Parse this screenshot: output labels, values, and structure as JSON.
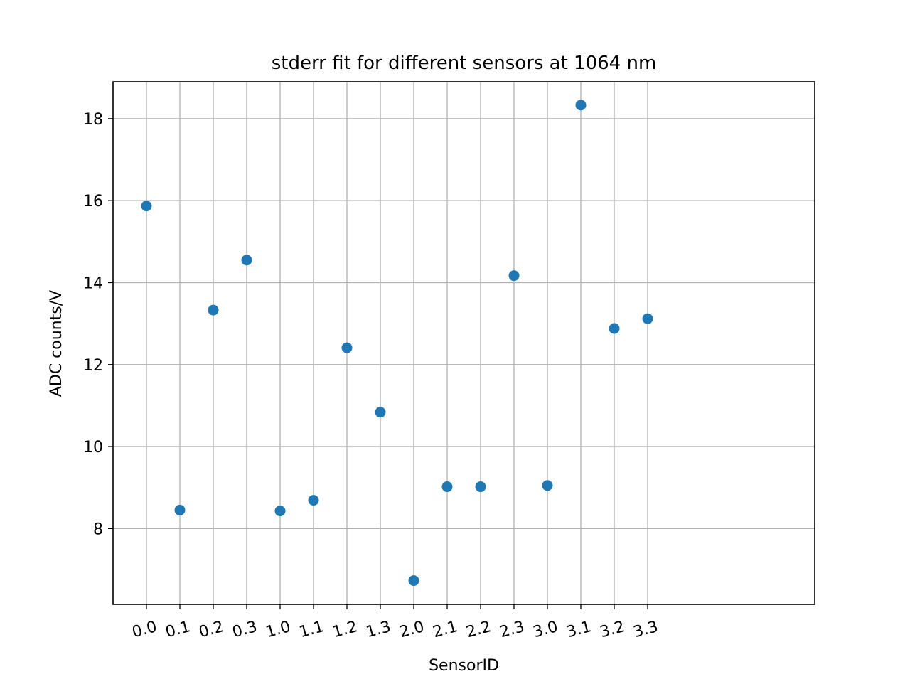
{
  "chart_data": {
    "type": "scatter",
    "title": "stderr fit for different sensors at 1064 nm",
    "xlabel": "SensorID",
    "ylabel": "ADC counts/V",
    "categories": [
      "0.0",
      "0.1",
      "0.2",
      "0.3",
      "1.0",
      "1.1",
      "1.2",
      "1.3",
      "2.0",
      "2.1",
      "2.2",
      "2.3",
      "3.0",
      "3.1",
      "3.2",
      "3.3"
    ],
    "series": [
      {
        "values": [
          15.87,
          8.45,
          13.33,
          14.55,
          8.43,
          8.69,
          12.41,
          10.84,
          6.73,
          9.02,
          9.02,
          14.17,
          9.05,
          18.33,
          12.88,
          13.12
        ]
      }
    ],
    "yticks": [
      8,
      10,
      12,
      14,
      16,
      18
    ],
    "ylim": [
      6.15,
      18.9
    ],
    "grid": true,
    "marker_color": "#1f77b4"
  }
}
